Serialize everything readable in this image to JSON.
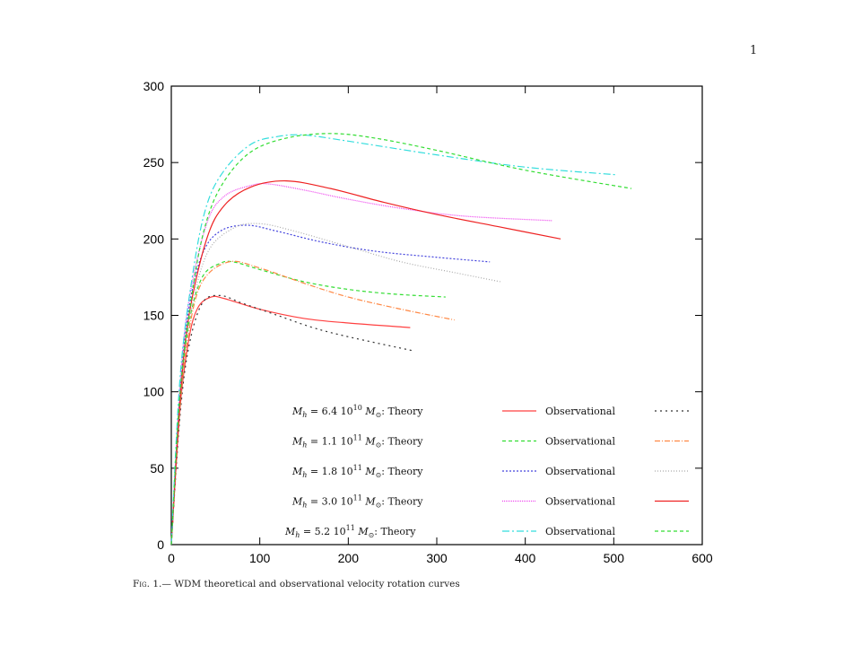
{
  "page_number": "1",
  "caption": {
    "fig": "Fig. 1.—",
    "text": "WDM theoretical and observational velocity rotation curves"
  },
  "chart_data": {
    "type": "line",
    "title": "",
    "xlabel": "",
    "ylabel": "",
    "xlim": [
      0,
      600
    ],
    "ylim": [
      0,
      300
    ],
    "xticks": [
      "0",
      "100",
      "200",
      "300",
      "400",
      "500",
      "600"
    ],
    "yticks": [
      "0",
      "50",
      "100",
      "150",
      "200",
      "250",
      "300"
    ],
    "grid": false,
    "legend_placement": "bottom-right",
    "legend_observational_label": "Observational",
    "series_groups": [
      {
        "mass": "6.4",
        "exp": "10",
        "label_suffix": ": Theory",
        "theory": {
          "color": "#ff4040",
          "dash": "",
          "points": [
            [
              0,
              0
            ],
            [
              10,
              90
            ],
            [
              20,
              135
            ],
            [
              30,
              155
            ],
            [
              45,
              162
            ],
            [
              60,
              161
            ],
            [
              100,
              154
            ],
            [
              150,
              148
            ],
            [
              200,
              145
            ],
            [
              270,
              142
            ]
          ]
        },
        "observational": {
          "color": "#333333",
          "dash": "2,4",
          "points": [
            [
              0,
              0
            ],
            [
              10,
              85
            ],
            [
              20,
              130
            ],
            [
              35,
              158
            ],
            [
              55,
              163
            ],
            [
              80,
              158
            ],
            [
              120,
              150
            ],
            [
              160,
              142
            ],
            [
              200,
              136
            ],
            [
              272,
              127
            ]
          ]
        }
      },
      {
        "mass": "1.1",
        "exp": "11",
        "label_suffix": ": Theory",
        "theory": {
          "color": "#33dd33",
          "dash": "4,3",
          "points": [
            [
              0,
              0
            ],
            [
              10,
              95
            ],
            [
              20,
              145
            ],
            [
              35,
              175
            ],
            [
              55,
              184
            ],
            [
              70,
              185
            ],
            [
              100,
              180
            ],
            [
              150,
              172
            ],
            [
              200,
              167
            ],
            [
              250,
              164
            ],
            [
              310,
              162
            ]
          ]
        },
        "observational": {
          "color": "#ff8844",
          "dash": "6,2,1,2",
          "points": [
            [
              0,
              0
            ],
            [
              10,
              90
            ],
            [
              20,
              140
            ],
            [
              35,
              172
            ],
            [
              65,
              185
            ],
            [
              100,
              181
            ],
            [
              150,
              171
            ],
            [
              200,
              162
            ],
            [
              260,
              154
            ],
            [
              320,
              147
            ]
          ]
        }
      },
      {
        "mass": "1.8",
        "exp": "11",
        "label_suffix": ": Theory",
        "theory": {
          "color": "#4444dd",
          "dash": "2,2",
          "points": [
            [
              0,
              0
            ],
            [
              10,
              100
            ],
            [
              20,
              155
            ],
            [
              35,
              190
            ],
            [
              55,
              205
            ],
            [
              85,
              209
            ],
            [
              120,
              205
            ],
            [
              170,
              198
            ],
            [
              230,
              192
            ],
            [
              300,
              188
            ],
            [
              360,
              185
            ]
          ]
        },
        "observational": {
          "color": "#aaaaaa",
          "dash": "1,2",
          "points": [
            [
              0,
              0
            ],
            [
              10,
              90
            ],
            [
              20,
              145
            ],
            [
              40,
              190
            ],
            [
              70,
              207
            ],
            [
              100,
              210
            ],
            [
              140,
              205
            ],
            [
              200,
              195
            ],
            [
              260,
              185
            ],
            [
              320,
              178
            ],
            [
              372,
              172
            ]
          ]
        }
      },
      {
        "mass": "3.0",
        "exp": "11",
        "label_suffix": ": Theory",
        "theory": {
          "color": "#ee44ee",
          "dash": "1,1",
          "points": [
            [
              0,
              0
            ],
            [
              10,
              105
            ],
            [
              20,
              160
            ],
            [
              40,
              210
            ],
            [
              60,
              228
            ],
            [
              90,
              235
            ],
            [
              110,
              236
            ],
            [
              150,
              232
            ],
            [
              200,
              226
            ],
            [
              260,
              220
            ],
            [
              330,
              215
            ],
            [
              430,
              212
            ]
          ]
        },
        "observational": {
          "color": "#ee2222",
          "dash": "",
          "points": [
            [
              0,
              0
            ],
            [
              10,
              95
            ],
            [
              20,
              150
            ],
            [
              40,
              200
            ],
            [
              60,
              222
            ],
            [
              90,
              234
            ],
            [
              130,
              238
            ],
            [
              180,
              233
            ],
            [
              240,
              224
            ],
            [
              300,
              216
            ],
            [
              370,
              208
            ],
            [
              440,
              200
            ]
          ]
        }
      },
      {
        "mass": "5.2",
        "exp": "11",
        "label_suffix": ": Theory",
        "theory": {
          "color": "#33dddd",
          "dash": "8,3,2,3",
          "points": [
            [
              0,
              0
            ],
            [
              10,
              110
            ],
            [
              25,
              180
            ],
            [
              40,
              222
            ],
            [
              60,
              245
            ],
            [
              90,
              262
            ],
            [
              120,
              267
            ],
            [
              150,
              268
            ],
            [
              200,
              264
            ],
            [
              300,
              255
            ],
            [
              400,
              247
            ],
            [
              503,
              242
            ]
          ]
        },
        "observational": {
          "color": "#33dd33",
          "dash": "4,3",
          "points": [
            [
              0,
              0
            ],
            [
              10,
              100
            ],
            [
              25,
              170
            ],
            [
              40,
              212
            ],
            [
              60,
              238
            ],
            [
              90,
              257
            ],
            [
              130,
              266
            ],
            [
              180,
              269
            ],
            [
              230,
              266
            ],
            [
              300,
              258
            ],
            [
              400,
              245
            ],
            [
              520,
              233
            ]
          ]
        }
      }
    ]
  }
}
